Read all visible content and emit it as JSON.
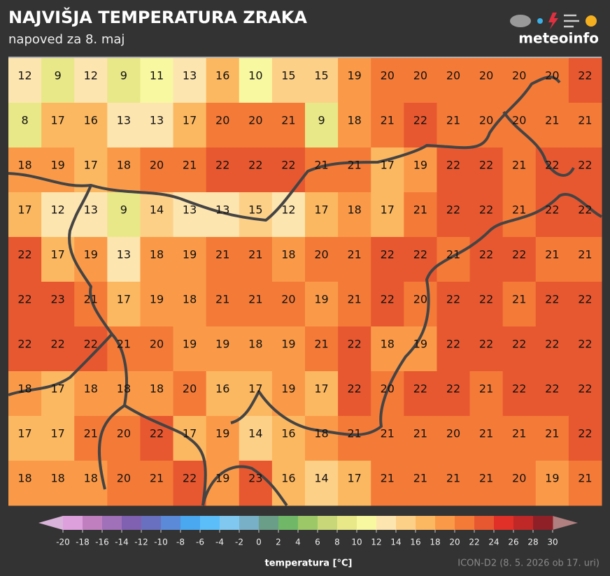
{
  "header": {
    "title": "NAJVIŠJA TEMPERATURA ZRAKA",
    "subtitle": "napoved za 8. maj"
  },
  "logo": "meteoinfo",
  "grid": {
    "rows": [
      [
        12,
        9,
        12,
        9,
        11,
        13,
        16,
        10,
        15,
        15,
        19,
        20,
        20,
        20,
        20,
        20,
        20,
        22
      ],
      [
        8,
        17,
        16,
        13,
        13,
        17,
        20,
        20,
        21,
        9,
        18,
        21,
        22,
        21,
        20,
        20,
        21,
        21
      ],
      [
        18,
        19,
        17,
        18,
        20,
        21,
        22,
        22,
        22,
        21,
        21,
        17,
        19,
        22,
        22,
        21,
        22,
        22
      ],
      [
        17,
        12,
        13,
        9,
        14,
        13,
        13,
        15,
        12,
        17,
        18,
        17,
        21,
        22,
        22,
        21,
        22,
        22
      ],
      [
        22,
        17,
        19,
        13,
        18,
        19,
        21,
        21,
        18,
        20,
        21,
        22,
        22,
        21,
        22,
        22,
        21,
        21
      ],
      [
        22,
        23,
        21,
        17,
        19,
        18,
        21,
        21,
        20,
        19,
        21,
        22,
        20,
        22,
        22,
        21,
        22,
        22
      ],
      [
        22,
        22,
        22,
        21,
        20,
        19,
        19,
        18,
        19,
        21,
        22,
        18,
        19,
        22,
        22,
        22,
        22,
        22
      ],
      [
        18,
        17,
        18,
        18,
        18,
        20,
        16,
        17,
        19,
        17,
        22,
        20,
        22,
        22,
        21,
        22,
        22,
        22
      ],
      [
        17,
        17,
        21,
        20,
        22,
        17,
        19,
        14,
        16,
        18,
        21,
        21,
        21,
        20,
        21,
        21,
        21,
        22
      ],
      [
        18,
        18,
        18,
        20,
        21,
        22,
        19,
        23,
        16,
        14,
        17,
        21,
        21,
        21,
        21,
        20,
        19,
        21
      ]
    ]
  },
  "colorbar": {
    "ticks": [
      -20,
      -18,
      -16,
      -14,
      -12,
      -10,
      -8,
      -6,
      -4,
      -2,
      0,
      2,
      4,
      6,
      8,
      10,
      12,
      14,
      16,
      18,
      20,
      22,
      24,
      26,
      28,
      30
    ],
    "colors": [
      "#dda0dd",
      "#c080c0",
      "#a070b8",
      "#8060b0",
      "#6a70c0",
      "#5a8ad8",
      "#4aa8f0",
      "#5cbef8",
      "#80c8f0",
      "#78b0c8",
      "#6a9e88",
      "#70b868",
      "#9cc868",
      "#c8d878",
      "#e8e888",
      "#f8f8a0",
      "#fde5b0",
      "#fdd088",
      "#fcb860",
      "#fa9a48",
      "#f47a38",
      "#e85830",
      "#e03028",
      "#c02828",
      "#902028"
    ],
    "under": "#d9b3d9",
    "over": "#b08080",
    "label": "temperatura [°C]"
  },
  "footer": "ICON-D2 (8. 5. 2026 ob 17. uri)"
}
